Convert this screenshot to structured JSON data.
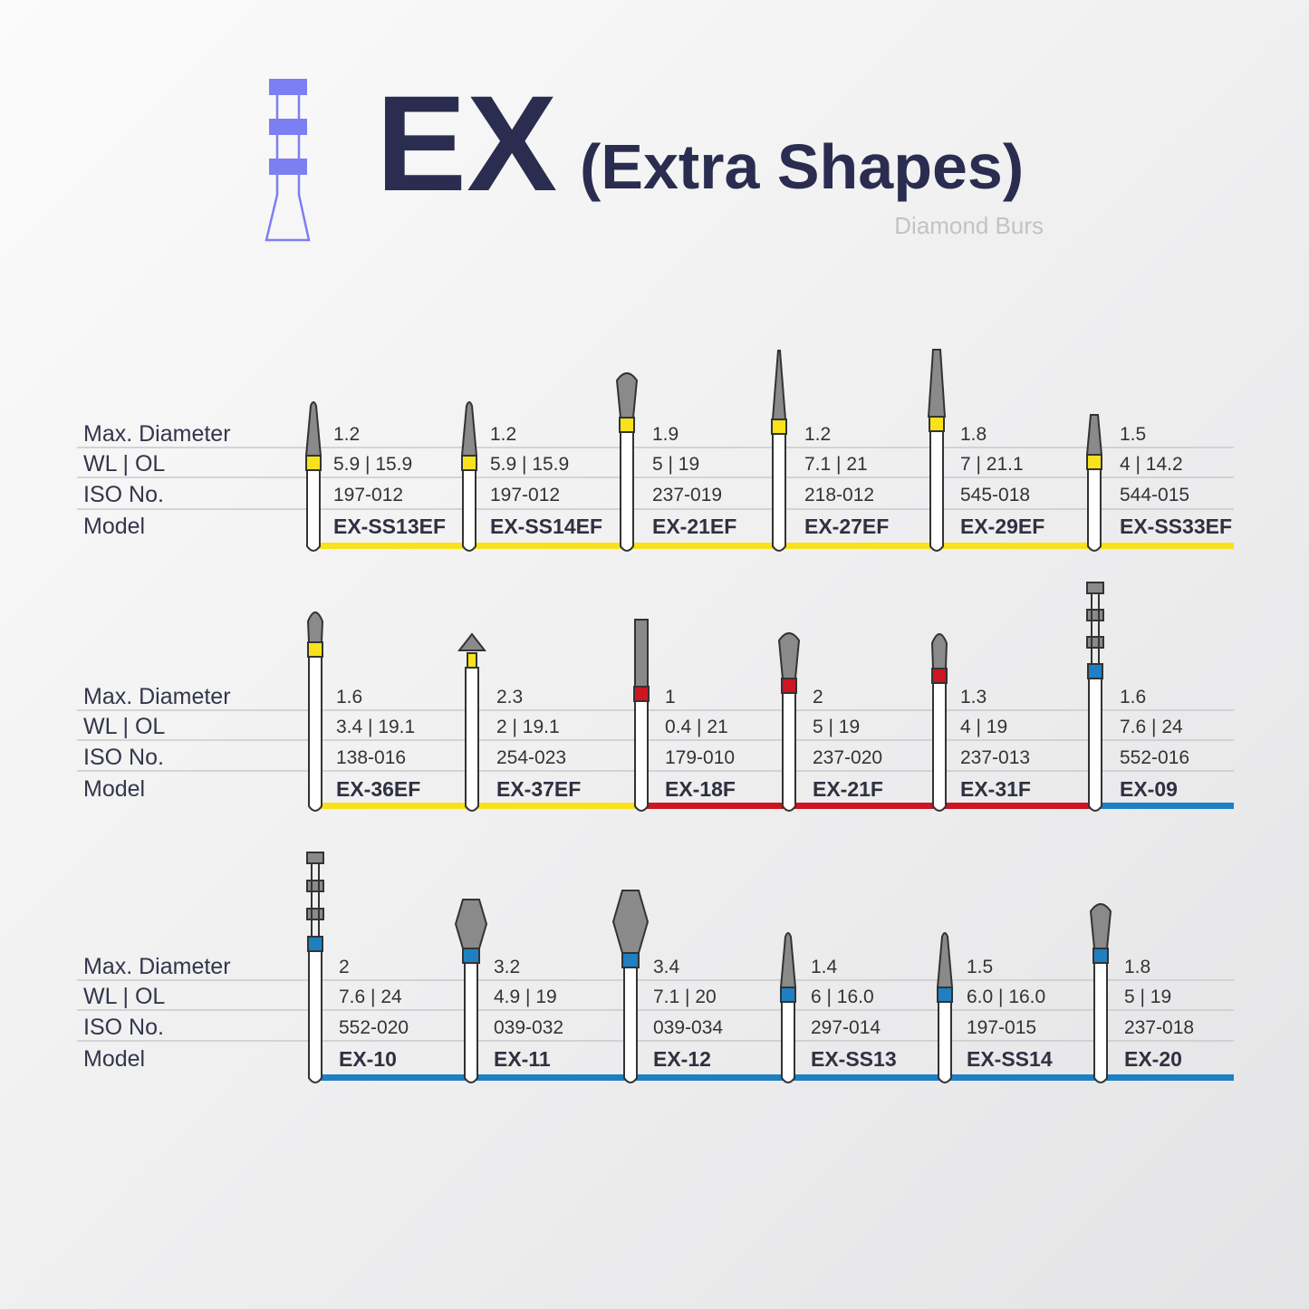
{
  "header": {
    "title": "EX",
    "subtitle": "(Extra Shapes)",
    "tagline": "Diamond Burs"
  },
  "sections": [
    {
      "labels": [
        "Max. Diameter",
        "WL | OL",
        "ISO No.",
        "Model"
      ],
      "items": [
        {
          "diameter": "1.2",
          "wl_ol": "5.9 | 15.9",
          "iso": "197-012",
          "model": "EX-SS13EF",
          "color": "#f7e21b"
        },
        {
          "diameter": "1.2",
          "wl_ol": "5.9 | 15.9",
          "iso": "197-012",
          "model": "EX-SS14EF",
          "color": "#f7e21b"
        },
        {
          "diameter": "1.9",
          "wl_ol": "5 | 19",
          "iso": "237-019",
          "model": "EX-21EF",
          "color": "#f7e21b"
        },
        {
          "diameter": "1.2",
          "wl_ol": "7.1 | 21",
          "iso": "218-012",
          "model": "EX-27EF",
          "color": "#f7e21b"
        },
        {
          "diameter": "1.8",
          "wl_ol": "7 | 21.1",
          "iso": "545-018",
          "model": "EX-29EF",
          "color": "#f7e21b"
        },
        {
          "diameter": "1.5",
          "wl_ol": "4 | 14.2",
          "iso": "544-015",
          "model": "EX-SS33EF",
          "color": "#f7e21b"
        }
      ]
    },
    {
      "labels": [
        "Max. Diameter",
        "WL | OL",
        "ISO No.",
        "Model"
      ],
      "items": [
        {
          "diameter": "1.6",
          "wl_ol": "3.4 | 19.1",
          "iso": "138-016",
          "model": "EX-36EF",
          "color": "#f7e21b"
        },
        {
          "diameter": "2.3",
          "wl_ol": "2 | 19.1",
          "iso": "254-023",
          "model": "EX-37EF",
          "color": "#f7e21b"
        },
        {
          "diameter": "1",
          "wl_ol": "0.4 | 21",
          "iso": "179-010",
          "model": "EX-18F",
          "color": "#cc1622"
        },
        {
          "diameter": "2",
          "wl_ol": "5 | 19",
          "iso": "237-020",
          "model": "EX-21F",
          "color": "#cc1622"
        },
        {
          "diameter": "1.3",
          "wl_ol": "4 | 19",
          "iso": "237-013",
          "model": "EX-31F",
          "color": "#cc1622"
        },
        {
          "diameter": "1.6",
          "wl_ol": "7.6 | 24",
          "iso": "552-016",
          "model": "EX-09",
          "color": "#1f7fc0"
        }
      ]
    },
    {
      "labels": [
        "Max. Diameter",
        "WL | OL",
        "ISO No.",
        "Model"
      ],
      "items": [
        {
          "diameter": "2",
          "wl_ol": "7.6 | 24",
          "iso": "552-020",
          "model": "EX-10",
          "color": "#1f7fc0"
        },
        {
          "diameter": "3.2",
          "wl_ol": "4.9 | 19",
          "iso": "039-032",
          "model": "EX-11",
          "color": "#1f7fc0"
        },
        {
          "diameter": "3.4",
          "wl_ol": "7.1 | 20",
          "iso": "039-034",
          "model": "EX-12",
          "color": "#1f7fc0"
        },
        {
          "diameter": "1.4",
          "wl_ol": "6 | 16.0",
          "iso": "297-014",
          "model": "EX-SS13",
          "color": "#1f7fc0"
        },
        {
          "diameter": "1.5",
          "wl_ol": "6.0 | 16.0",
          "iso": "197-015",
          "model": "EX-SS14",
          "color": "#1f7fc0"
        },
        {
          "diameter": "1.8",
          "wl_ol": "5 | 19",
          "iso": "237-018",
          "model": "EX-20",
          "color": "#1f7fc0"
        }
      ]
    }
  ]
}
